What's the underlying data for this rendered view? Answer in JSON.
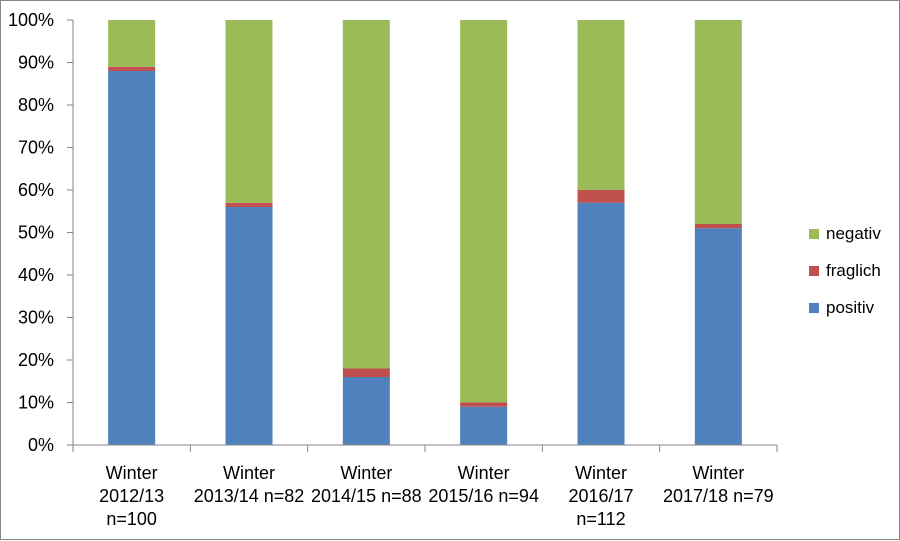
{
  "chart_data": {
    "type": "bar",
    "stacked": true,
    "percent": true,
    "title": "",
    "xlabel": "",
    "ylabel": "",
    "ylim": [
      0,
      100
    ],
    "yticks": [
      "0%",
      "10%",
      "20%",
      "30%",
      "40%",
      "50%",
      "60%",
      "70%",
      "80%",
      "90%",
      "100%"
    ],
    "categories": [
      [
        "Winter",
        "2012/13",
        "n=100"
      ],
      [
        "Winter",
        "2013/14 n=82"
      ],
      [
        "Winter",
        "2014/15 n=88"
      ],
      [
        "Winter",
        "2015/16 n=94"
      ],
      [
        "Winter",
        "2016/17",
        "n=112"
      ],
      [
        "Winter",
        "2017/18 n=79"
      ]
    ],
    "series": [
      {
        "name": "positiv",
        "color": "#4f81bd",
        "values": [
          88,
          56,
          16,
          9,
          57,
          51
        ]
      },
      {
        "name": "fraglich",
        "color": "#c0504d",
        "values": [
          1,
          1,
          2,
          1,
          3,
          1
        ]
      },
      {
        "name": "negativ",
        "color": "#9bbb59",
        "values": [
          11,
          43,
          82,
          90,
          40,
          48
        ]
      }
    ],
    "legend_order": [
      "negativ",
      "fraglich",
      "positiv"
    ],
    "legend_position": "right"
  }
}
